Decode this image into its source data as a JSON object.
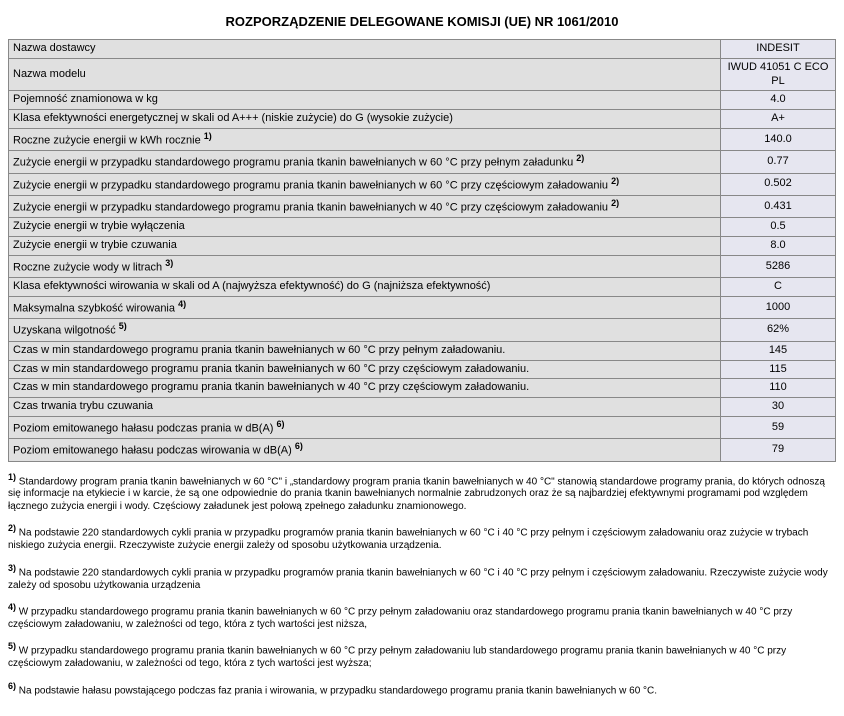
{
  "title": "ROZPORZĄDZENIE DELEGOWANE KOMISJI (UE) NR 1061/2010",
  "rows": [
    {
      "label": "Nazwa dostawcy",
      "value": "INDESIT"
    },
    {
      "label": "Nazwa modelu",
      "value": "IWUD 41051 C ECO PL"
    },
    {
      "label": "Pojemność znamionowa w kg",
      "value": "4.0"
    },
    {
      "label": "Klasa efektywności energetycznej w skali od A+++ (niskie zużycie) do G (wysokie zużycie)",
      "value": "A+"
    },
    {
      "label": "Roczne zużycie energii w kWh rocznie",
      "sup": "1)",
      "value": "140.0"
    },
    {
      "label": "Zużycie energii w przypadku standardowego programu prania tkanin bawełnianych w 60 °C przy pełnym załadunku",
      "sup": "2)",
      "value": "0.77"
    },
    {
      "label": "Zużycie energii w przypadku standardowego programu prania tkanin bawełnianych w 60 °C przy częściowym załadowaniu",
      "sup": "2)",
      "value": "0.502"
    },
    {
      "label": "Zużycie energii w przypadku standardowego programu prania tkanin bawełnianych w 40 °C przy częściowym załadowaniu",
      "sup": "2)",
      "value": "0.431"
    },
    {
      "label": "Zużycie energii w trybie wyłączenia",
      "value": "0.5"
    },
    {
      "label": "Zużycie energii w trybie czuwania",
      "value": "8.0"
    },
    {
      "label": "Roczne zużycie wody w litrach",
      "sup": "3)",
      "value": "5286"
    },
    {
      "label": "Klasa efektywności wirowania w skali od A (najwyższa efektywność) do G (najniższa efektywność)",
      "value": "C"
    },
    {
      "label": "Maksymalna szybkość wirowania",
      "sup": "4)",
      "value": "1000"
    },
    {
      "label": "Uzyskana wilgotność",
      "sup": "5)",
      "value": "62%"
    },
    {
      "label": "Czas w min standardowego programu prania tkanin bawełnianych w 60 °C przy pełnym załadowaniu.",
      "value": "145"
    },
    {
      "label": "Czas w min standardowego programu prania tkanin bawełnianych w 60 °C przy częściowym załadowaniu.",
      "value": "115"
    },
    {
      "label": "Czas w min standardowego programu prania tkanin bawełnianych w 40 °C przy częściowym załadowaniu.",
      "value": "110"
    },
    {
      "label": "Czas trwania trybu czuwania",
      "value": "30"
    },
    {
      "label": "Poziom emitowanego hałasu podczas prania w dB(A)",
      "sup": "6)",
      "value": "59"
    },
    {
      "label": "Poziom emitowanego hałasu podczas wirowania w dB(A)",
      "sup": "6)",
      "value": "79"
    }
  ],
  "footnotes": [
    {
      "num": "1)",
      "text": "Standardowy program prania tkanin bawełnianych w 60 °C\" i „standardowy program prania tkanin bawełnianych w 40 °C\" stanowią standardowe programy prania, do których odnoszą się informacje na etykiecie i w karcie, że są one odpowiednie do prania tkanin bawełnianych normalnie zabrudzonych oraz że są najbardziej efektywnymi programami pod względem łącznego zużycia energii i wody. Częściowy załadunek jest połową zpełnego załadunku znamionowego."
    },
    {
      "num": "2)",
      "text": "Na podstawie 220 standardowych cykli prania w przypadku programów prania tkanin bawełnianych w 60 °C i 40 °C przy pełnym i częściowym załadowaniu oraz zużycie w trybach niskiego zużycia energii. Rzeczywiste zużycie energii zależy od sposobu użytkowania urządzenia."
    },
    {
      "num": "3)",
      "text": "Na podstawie 220 standardowych cykli prania w przypadku programów prania tkanin bawełnianych w 60 °C i 40 °C przy pełnym i częściowym załadowaniu. Rzeczywiste zużycie wody zależy od sposobu użytkowania urządzenia"
    },
    {
      "num": "4)",
      "text": "W przypadku standardowego programu prania tkanin bawełnianych w 60 °C przy pełnym załadowaniu oraz standardowego programu prania tkanin bawełnianych w 40 °C przy częściowym załadowaniu, w zależności od tego, która z tych wartości jest niższa,"
    },
    {
      "num": "5)",
      "text": "W przypadku standardowego programu prania tkanin bawełnianych w 60 °C przy pełnym załadowaniu lub standardowego programu prania tkanin bawełnianych w 40 °C przy częściowym załadowaniu, w zależności od tego, która z tych wartości jest wyższa;"
    },
    {
      "num": "6)",
      "text": "Na podstawie hałasu powstającego podczas faz prania i wirowania, w przypadku standardowego programu prania tkanin bawełnianych w 60 °C."
    }
  ]
}
